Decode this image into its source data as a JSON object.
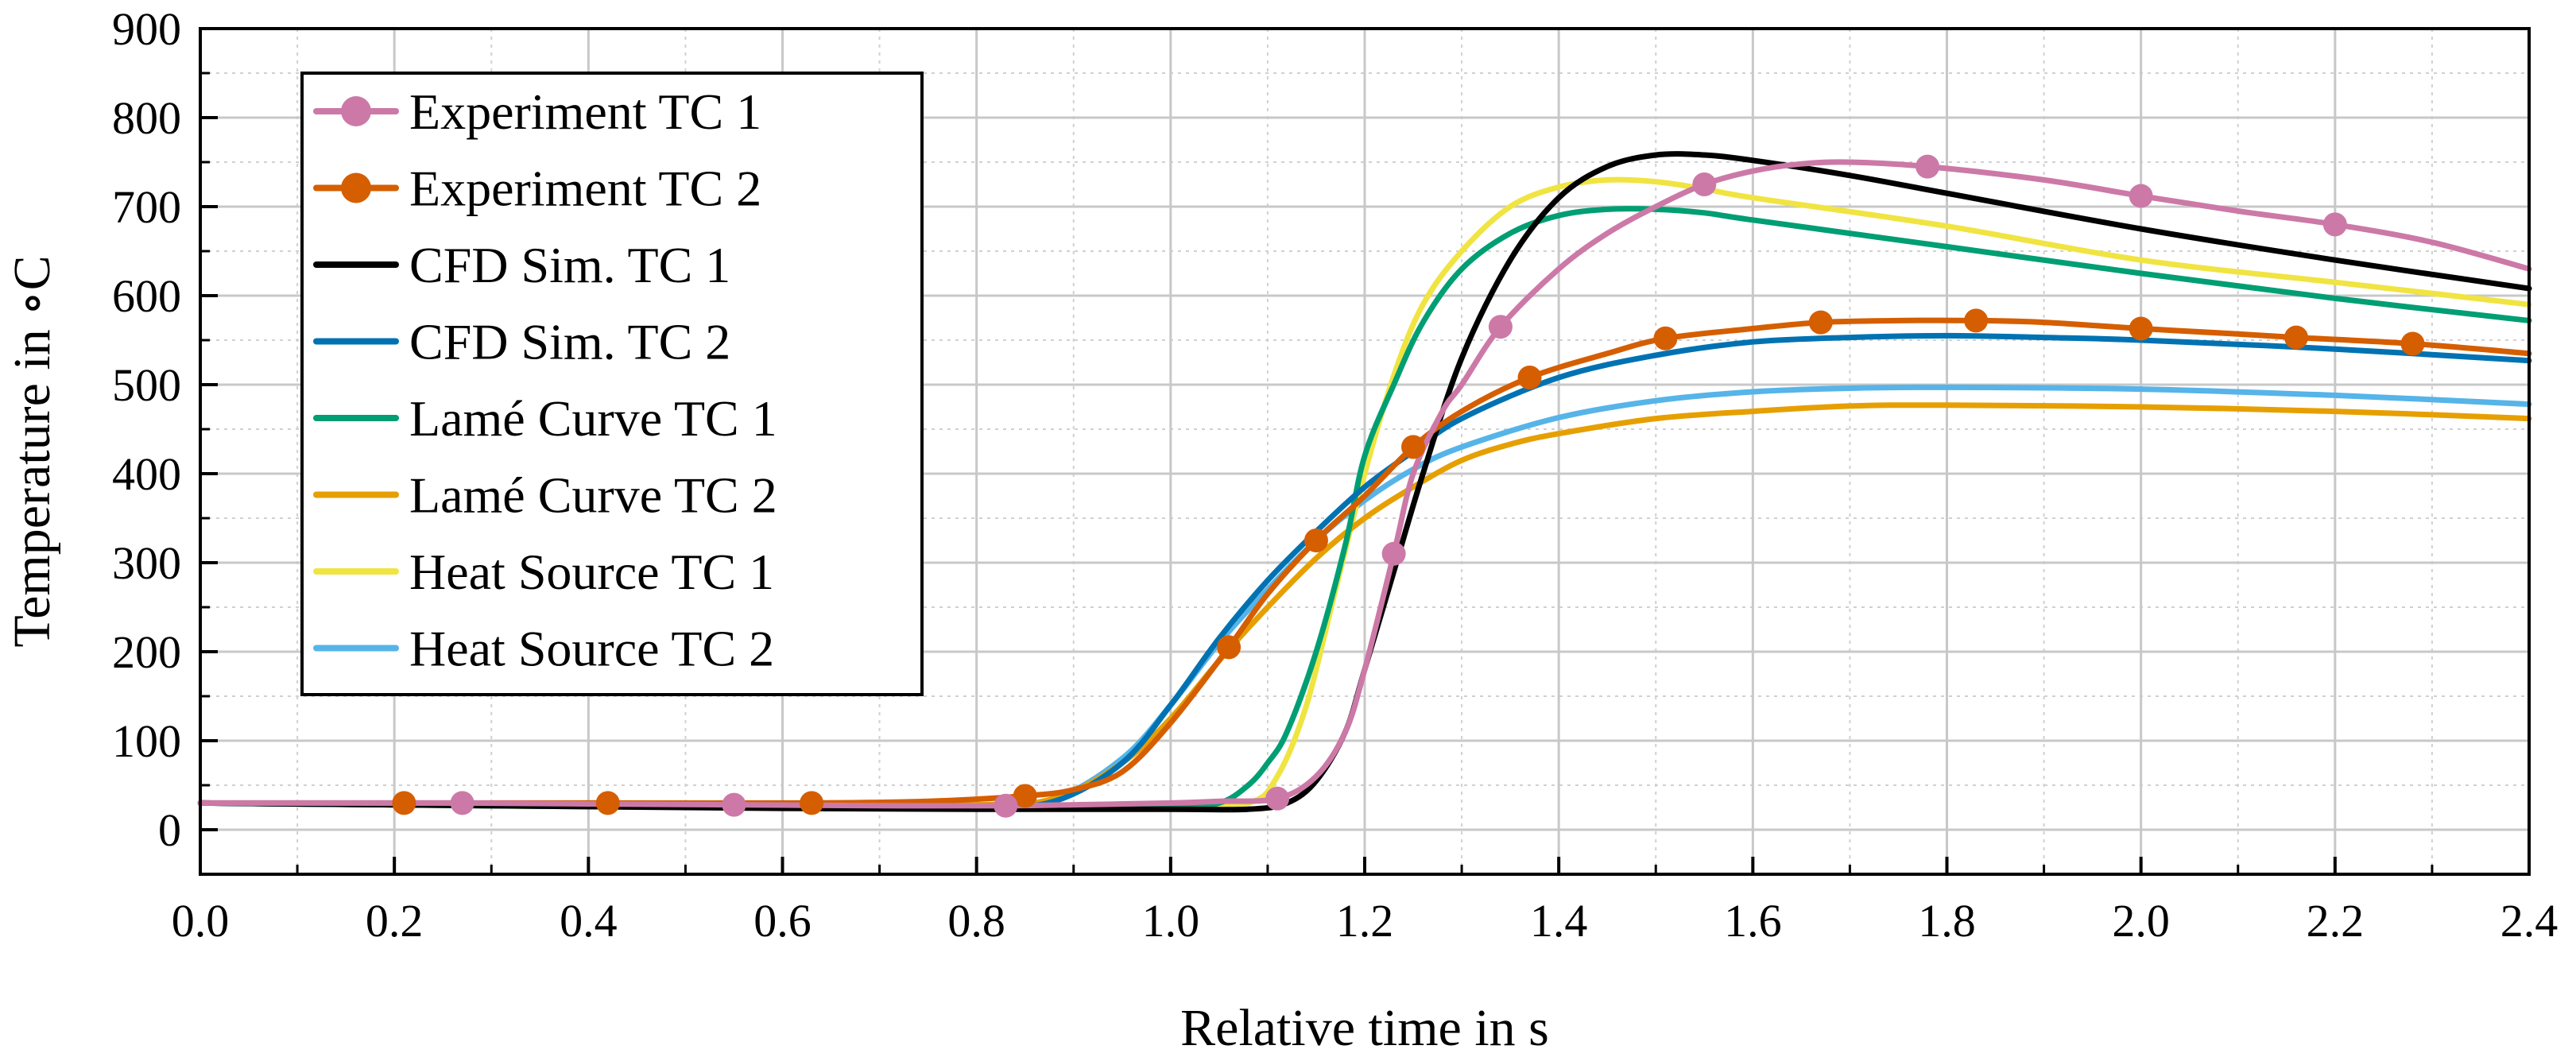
{
  "chart_data": {
    "type": "line",
    "title": "",
    "xlabel": "Relative time in s",
    "ylabel": "Temperature in ∘C",
    "xlim": [
      0.0,
      2.4
    ],
    "ylim": [
      -50,
      900
    ],
    "xticks": [
      "0.0",
      "0.2",
      "0.4",
      "0.6",
      "0.8",
      "1.0",
      "1.2",
      "1.4",
      "1.6",
      "1.8",
      "2.0",
      "2.2",
      "2.4"
    ],
    "yticks": [
      "0",
      "100",
      "200",
      "300",
      "400",
      "500",
      "600",
      "700",
      "800",
      "900"
    ],
    "grid": true,
    "legend_position": "top-left",
    "series": [
      {
        "name": "Experiment TC 1",
        "color": "#cc79a7",
        "marker": true,
        "x": [
          0.0,
          0.1,
          0.2,
          0.27,
          0.4,
          0.55,
          0.7,
          0.83,
          0.9,
          1.0,
          1.05,
          1.11,
          1.15,
          1.18,
          1.2,
          1.23,
          1.25,
          1.28,
          1.3,
          1.34,
          1.4,
          1.45,
          1.5,
          1.55,
          1.6,
          1.65,
          1.7,
          1.78,
          1.9,
          2.0,
          2.1,
          2.2,
          2.3,
          2.4
        ],
        "y": [
          30,
          30,
          30,
          30,
          29,
          28,
          27,
          27,
          28,
          30,
          32,
          35,
          60,
          110,
          180,
          310,
          400,
          470,
          500,
          565,
          630,
          670,
          700,
          725,
          740,
          748,
          750,
          745,
          730,
          712,
          695,
          680,
          660,
          630
        ],
        "markers_x": [
          0.27,
          0.55,
          0.83,
          1.11,
          1.23,
          1.34,
          1.55,
          1.78,
          2.0,
          2.2
        ],
        "markers_y": [
          30,
          28,
          27,
          35,
          310,
          565,
          725,
          745,
          712,
          680
        ]
      },
      {
        "name": "Experiment TC 2",
        "color": "#d55e00",
        "marker": true,
        "x": [
          0.0,
          0.21,
          0.42,
          0.63,
          0.75,
          0.85,
          0.9,
          0.95,
          1.0,
          1.06,
          1.1,
          1.15,
          1.2,
          1.25,
          1.3,
          1.37,
          1.45,
          1.51,
          1.6,
          1.67,
          1.75,
          1.83,
          1.9,
          2.0,
          2.1,
          2.16,
          2.28,
          2.4
        ],
        "y": [
          30,
          30,
          30,
          30,
          32,
          38,
          45,
          65,
          120,
          205,
          265,
          325,
          375,
          430,
          470,
          508,
          535,
          552,
          563,
          570,
          572,
          572,
          570,
          563,
          557,
          553,
          546,
          535
        ],
        "markers_x": [
          0.21,
          0.42,
          0.63,
          0.85,
          1.06,
          1.15,
          1.25,
          1.37,
          1.51,
          1.67,
          1.83,
          2.0,
          2.16,
          2.28
        ],
        "markers_y": [
          30,
          30,
          30,
          38,
          205,
          325,
          430,
          508,
          552,
          570,
          572,
          563,
          553,
          546
        ]
      },
      {
        "name": "CFD Sim. TC 1",
        "color": "#000000",
        "marker": false,
        "x": [
          0.0,
          0.2,
          0.4,
          0.6,
          0.8,
          1.0,
          1.08,
          1.12,
          1.15,
          1.18,
          1.2,
          1.23,
          1.26,
          1.3,
          1.35,
          1.4,
          1.45,
          1.5,
          1.55,
          1.6,
          1.7,
          1.8,
          2.0,
          2.2,
          2.4
        ],
        "y": [
          30,
          28,
          26,
          24,
          23,
          23,
          23,
          30,
          55,
          110,
          180,
          290,
          400,
          530,
          640,
          710,
          745,
          758,
          758,
          752,
          735,
          715,
          675,
          640,
          608
        ]
      },
      {
        "name": "CFD Sim. TC 2",
        "color": "#0072b2",
        "marker": false,
        "x": [
          0.0,
          0.2,
          0.4,
          0.6,
          0.8,
          0.88,
          0.95,
          1.0,
          1.05,
          1.1,
          1.15,
          1.2,
          1.25,
          1.3,
          1.4,
          1.5,
          1.6,
          1.7,
          1.8,
          1.9,
          2.0,
          2.2,
          2.4
        ],
        "y": [
          30,
          28,
          27,
          26,
          26,
          32,
          75,
          140,
          215,
          280,
          335,
          385,
          425,
          462,
          508,
          533,
          548,
          553,
          555,
          553,
          550,
          540,
          527
        ]
      },
      {
        "name": "Lamé Curve TC 1",
        "color": "#009e73",
        "marker": false,
        "x": [
          0.0,
          0.2,
          0.4,
          0.6,
          0.8,
          1.0,
          1.05,
          1.08,
          1.1,
          1.12,
          1.15,
          1.18,
          1.2,
          1.23,
          1.26,
          1.3,
          1.35,
          1.4,
          1.45,
          1.5,
          1.55,
          1.6,
          1.8,
          2.0,
          2.2,
          2.4
        ],
        "y": [
          30,
          28,
          26,
          25,
          24,
          25,
          30,
          50,
          75,
          110,
          200,
          320,
          420,
          500,
          570,
          630,
          670,
          690,
          697,
          697,
          693,
          685,
          655,
          625,
          597,
          572
        ]
      },
      {
        "name": "Lamé Curve TC 2",
        "color": "#e69f00",
        "marker": false,
        "x": [
          0.0,
          0.2,
          0.4,
          0.6,
          0.8,
          0.88,
          0.95,
          1.0,
          1.05,
          1.1,
          1.15,
          1.2,
          1.25,
          1.3,
          1.35,
          1.4,
          1.5,
          1.6,
          1.7,
          1.8,
          2.0,
          2.2,
          2.4
        ],
        "y": [
          30,
          28,
          27,
          26,
          28,
          35,
          75,
          125,
          190,
          250,
          305,
          350,
          385,
          415,
          433,
          445,
          462,
          470,
          476,
          477,
          475,
          470,
          462
        ]
      },
      {
        "name": "Heat Source TC 1",
        "color": "#f0e442",
        "marker": false,
        "x": [
          0.0,
          0.2,
          0.4,
          0.6,
          0.8,
          1.0,
          1.08,
          1.11,
          1.14,
          1.17,
          1.2,
          1.23,
          1.26,
          1.3,
          1.35,
          1.4,
          1.45,
          1.5,
          1.55,
          1.6,
          1.8,
          2.0,
          2.2,
          2.4
        ],
        "y": [
          30,
          28,
          26,
          25,
          24,
          25,
          30,
          60,
          140,
          270,
          400,
          510,
          590,
          650,
          700,
          722,
          730,
          728,
          720,
          710,
          678,
          640,
          615,
          590
        ]
      },
      {
        "name": "Heat Source TC 2",
        "color": "#56b4e9",
        "marker": false,
        "x": [
          0.0,
          0.2,
          0.4,
          0.6,
          0.8,
          0.88,
          0.95,
          1.0,
          1.05,
          1.1,
          1.15,
          1.2,
          1.25,
          1.3,
          1.4,
          1.5,
          1.6,
          1.7,
          1.8,
          2.0,
          2.2,
          2.4
        ],
        "y": [
          30,
          28,
          27,
          26,
          27,
          35,
          80,
          140,
          210,
          270,
          325,
          370,
          405,
          430,
          463,
          482,
          492,
          496,
          497,
          495,
          488,
          478
        ]
      }
    ]
  }
}
